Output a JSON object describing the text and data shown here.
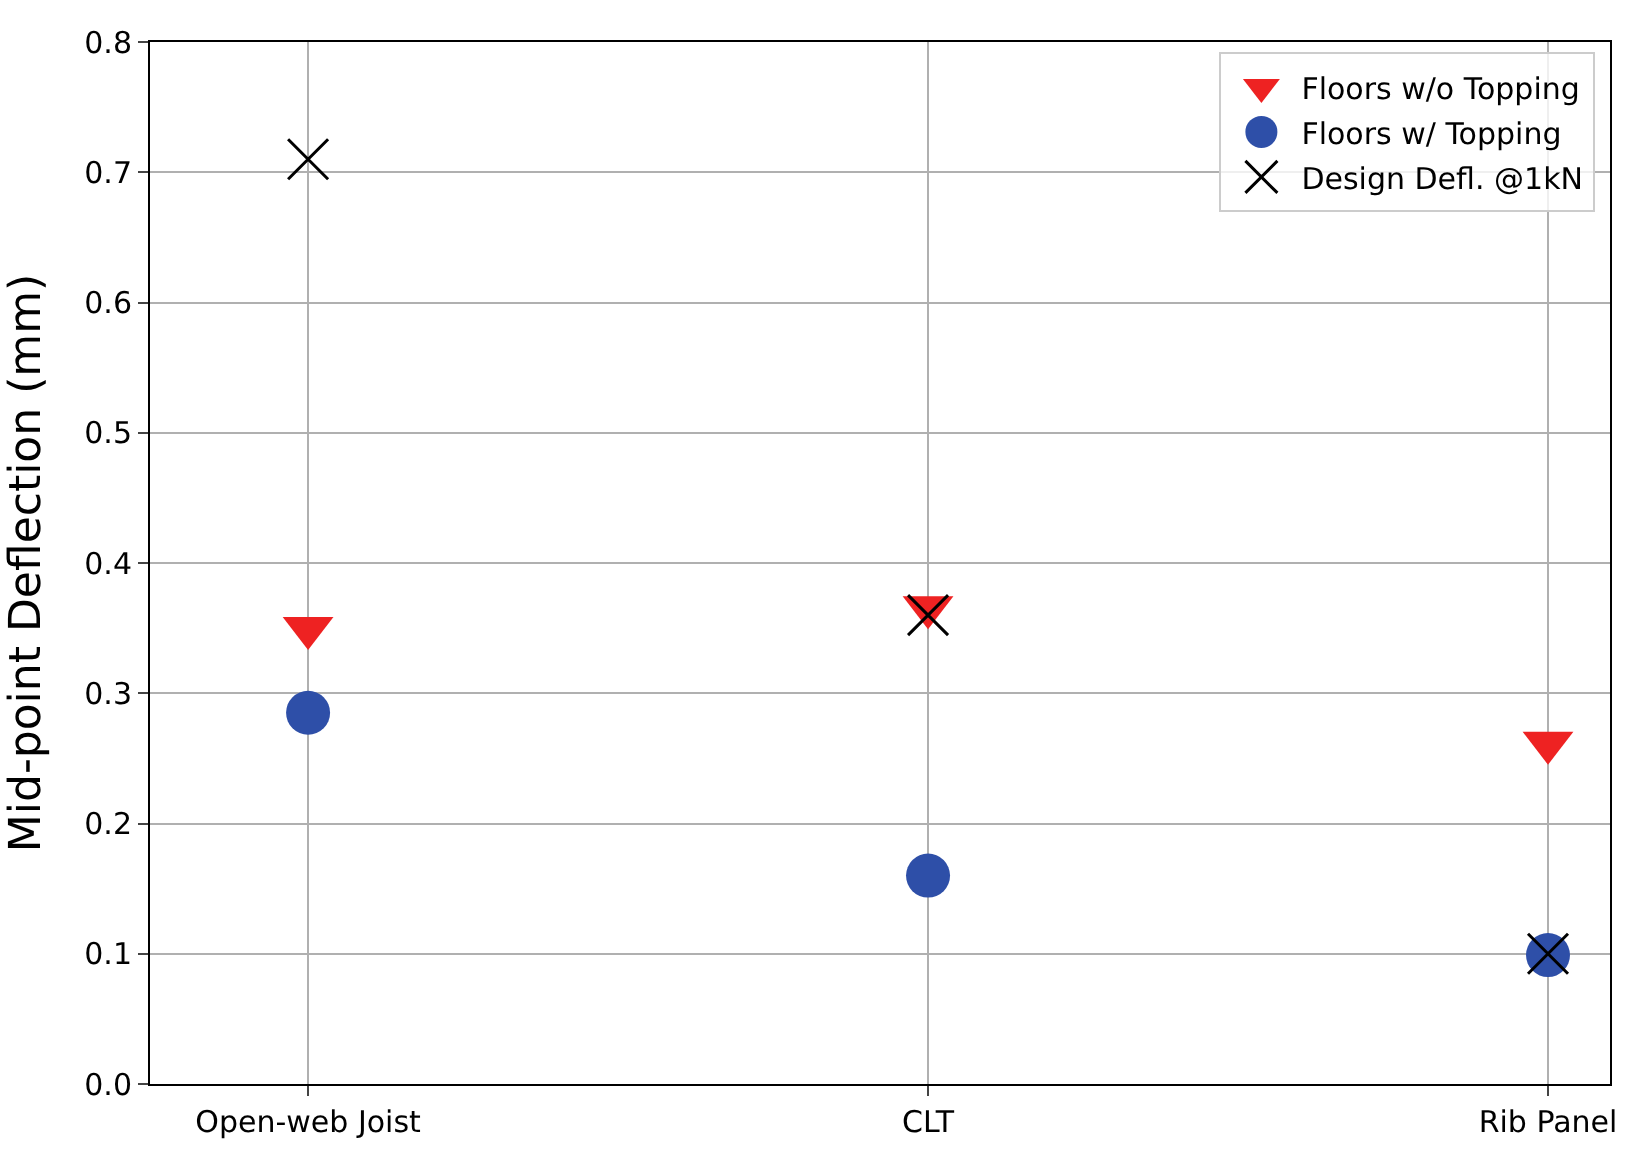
{
  "chart_data": {
    "type": "scatter",
    "ylabel": "Mid-point Deflection (mm)",
    "categories": [
      "Open-web Joist",
      "CLT",
      "Rib Panel"
    ],
    "series": [
      {
        "name": "Floors w/o Topping",
        "color": "#ee2222",
        "marker": "triangle",
        "values": [
          0.35,
          0.366,
          0.262
        ]
      },
      {
        "name": "Floors w/ Topping",
        "color": "#2e4fa8",
        "marker": "circle",
        "values": [
          0.285,
          0.16,
          0.099
        ]
      },
      {
        "name": "Design Defl. @1kN",
        "color": "#000000",
        "marker": "cross",
        "values": [
          0.71,
          0.36,
          0.1
        ]
      }
    ],
    "ylim": [
      0,
      0.8
    ],
    "yticks": [
      {
        "value": 0,
        "label": "0.0"
      },
      0.1,
      0.2,
      0.3,
      0.4,
      0.5,
      0.6,
      0.7,
      0.8
    ],
    "grid": true,
    "legend": "top right"
  }
}
